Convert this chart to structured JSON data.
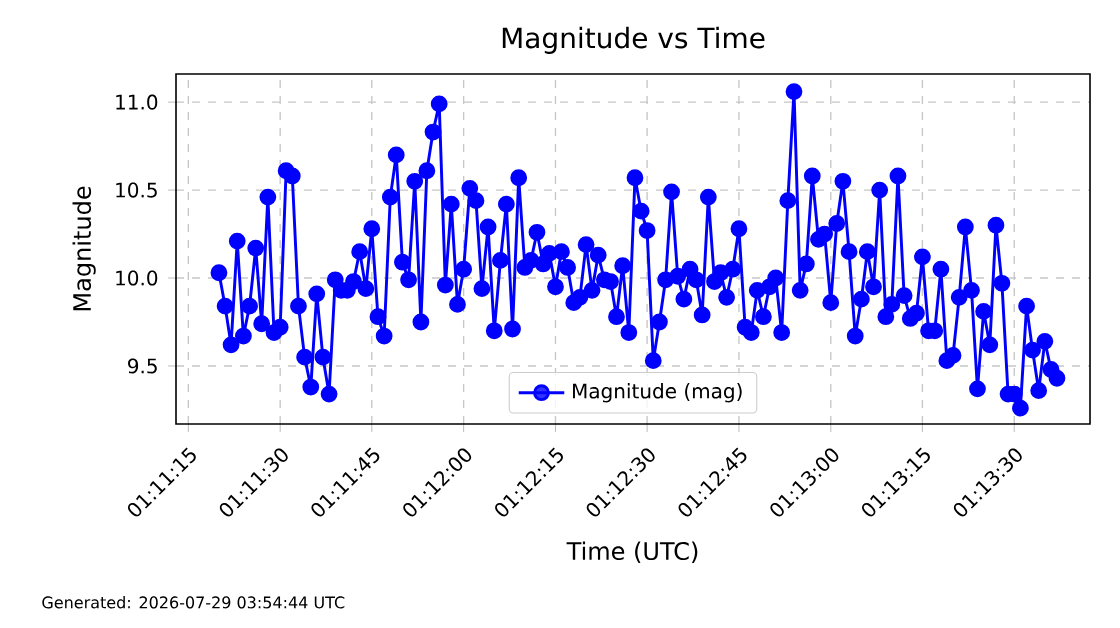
{
  "chart_data": {
    "type": "line",
    "title": "Magnitude vs Time",
    "xlabel": "Time (UTC)",
    "ylabel": "Magnitude",
    "x": [
      1.18889,
      1.18917,
      1.18944,
      1.18972,
      1.19,
      1.19028,
      1.19056,
      1.19083,
      1.19111,
      1.19139,
      1.19167,
      1.19194,
      1.19222,
      1.1925,
      1.19278,
      1.19306,
      1.19333,
      1.19361,
      1.19389,
      1.19417,
      1.19444,
      1.19472,
      1.195,
      1.19528,
      1.19556,
      1.19583,
      1.19611,
      1.19639,
      1.19667,
      1.19694,
      1.19722,
      1.1975,
      1.19778,
      1.19806,
      1.19833,
      1.19861,
      1.19889,
      1.19917,
      1.19944,
      1.19972,
      1.2,
      1.20028,
      1.20056,
      1.20083,
      1.20111,
      1.20139,
      1.20167,
      1.20194,
      1.20222,
      1.2025,
      1.20278,
      1.20306,
      1.20333,
      1.20361,
      1.20389,
      1.20417,
      1.20444,
      1.20472,
      1.205,
      1.20528,
      1.20556,
      1.20583,
      1.20611,
      1.20639,
      1.20667,
      1.20694,
      1.20722,
      1.2075,
      1.20778,
      1.20806,
      1.20833,
      1.20861,
      1.20889,
      1.20917,
      1.20944,
      1.20972,
      1.21,
      1.21028,
      1.21056,
      1.21083,
      1.21111,
      1.21139,
      1.21167,
      1.21194,
      1.21222,
      1.2125,
      1.21278,
      1.21306,
      1.21333,
      1.21361,
      1.21389,
      1.21417,
      1.21444,
      1.21472,
      1.215,
      1.21528,
      1.21556,
      1.21583,
      1.21611,
      1.21639,
      1.21667,
      1.21694,
      1.21722,
      1.2175,
      1.21778,
      1.21806,
      1.21833,
      1.21861,
      1.21889,
      1.21917,
      1.21944,
      1.21972,
      1.22,
      1.22028,
      1.22056,
      1.22083,
      1.22111,
      1.22139,
      1.22167,
      1.22194,
      1.22222,
      1.2225,
      1.22278,
      1.22306,
      1.22333,
      1.22361,
      1.22389,
      1.22417,
      1.22444,
      1.22472,
      1.225,
      1.22528,
      1.22556,
      1.22583,
      1.22611,
      1.22639,
      1.22667,
      1.22694
    ],
    "series": [
      {
        "name": "Magnitude (mag)",
        "color": "#0000ff",
        "values": [
          10.03,
          9.84,
          9.62,
          10.21,
          9.67,
          9.84,
          10.17,
          9.74,
          10.46,
          9.69,
          9.72,
          10.61,
          10.58,
          9.84,
          9.55,
          9.38,
          9.91,
          9.55,
          9.34,
          9.99,
          9.93,
          9.93,
          9.98,
          10.15,
          9.94,
          10.28,
          9.78,
          9.67,
          10.46,
          10.7,
          10.09,
          9.99,
          10.55,
          9.75,
          10.61,
          10.83,
          10.99,
          9.96,
          10.42,
          9.85,
          10.05,
          10.51,
          10.44,
          9.94,
          10.29,
          9.7,
          10.1,
          10.42,
          9.71,
          10.57,
          10.06,
          10.1,
          10.26,
          10.08,
          10.14,
          9.95,
          10.15,
          10.06,
          9.86,
          9.89,
          10.19,
          9.93,
          10.13,
          9.99,
          9.98,
          9.78,
          10.07,
          9.69,
          10.57,
          10.38,
          10.27,
          9.53,
          9.75,
          9.99,
          10.49,
          10.01,
          9.88,
          10.05,
          9.99,
          9.79,
          10.46,
          9.98,
          10.03,
          9.89,
          10.05,
          10.28,
          9.72,
          9.69,
          9.93,
          9.78,
          9.95,
          10.0,
          9.69,
          10.44,
          11.06,
          9.93,
          10.08,
          10.58,
          10.22,
          10.25,
          9.86,
          10.31,
          10.55,
          10.15,
          9.67,
          9.88,
          10.15,
          9.95,
          10.5,
          9.78,
          9.85,
          10.58,
          9.9,
          9.77,
          9.8,
          10.12,
          9.7,
          9.7,
          10.05,
          9.53,
          9.56,
          9.89,
          10.29,
          9.93,
          9.37,
          9.81,
          9.62,
          10.3,
          9.97,
          9.34,
          9.34,
          9.26,
          9.84,
          9.59,
          9.36,
          9.64,
          9.48,
          9.43
        ]
      }
    ],
    "xlim": [
      1.18694,
      1.22844
    ],
    "xticks": [
      {
        "value": 1.1875,
        "label": "01:11:15"
      },
      {
        "value": 1.19167,
        "label": "01:11:30"
      },
      {
        "value": 1.19583,
        "label": "01:11:45"
      },
      {
        "value": 1.2,
        "label": "01:12:00"
      },
      {
        "value": 1.20417,
        "label": "01:12:15"
      },
      {
        "value": 1.20833,
        "label": "01:12:30"
      },
      {
        "value": 1.2125,
        "label": "01:12:45"
      },
      {
        "value": 1.21667,
        "label": "01:13:00"
      },
      {
        "value": 1.22083,
        "label": "01:13:15"
      },
      {
        "value": 1.225,
        "label": "01:13:30"
      }
    ],
    "ylim": [
      9.17,
      11.16
    ],
    "yticks": [
      9.5,
      {
        "value": 10,
        "label": "10.0"
      },
      10.5,
      {
        "value": 11,
        "label": "11.0"
      }
    ],
    "grid": true,
    "legend": "bottom",
    "marker": "circle",
    "line_style": "solid",
    "annotations": [
      "Generated: 2026-07-29 03:54:44 UTC"
    ]
  }
}
